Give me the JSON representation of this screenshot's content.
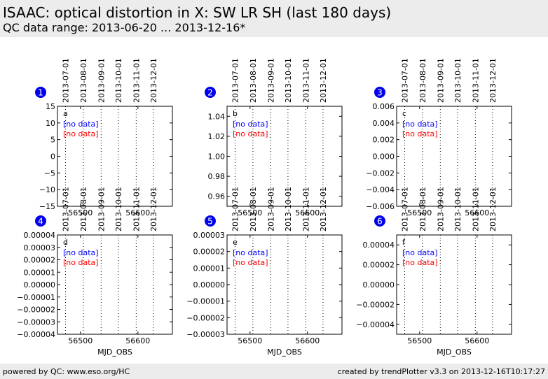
{
  "header": {
    "title": "ISAAC: optical distortion in X: SW LR SH (last 180 days)",
    "subtitle": "QC data range: 2013-06-20 ... 2013-12-16*"
  },
  "footer": {
    "left": "powered by QC: www.eso.org/HC",
    "right": "created by trendPlotter v3.3 on 2013-12-16T10:17:27"
  },
  "colors": {
    "header_bg": "#ececec",
    "badge": "#0000ee",
    "series_blue": "#0000ff",
    "series_red": "#ff0000"
  },
  "chart_data": [
    {
      "type": "scatter",
      "badge": "1",
      "panel_label": "a",
      "xlabel": "",
      "ylabel": "",
      "xlim": [
        56460,
        56660
      ],
      "xticks": [
        56500,
        56600
      ],
      "xtick_labels": [
        "56500",
        "56600"
      ],
      "ylim": [
        -15,
        15
      ],
      "yticks": [
        -15,
        -10,
        -5,
        0,
        5,
        10,
        15
      ],
      "ytick_labels": [
        "−15",
        "−10",
        "−5",
        "0",
        "5",
        "10",
        "15"
      ],
      "date_markers": [
        {
          "mjd": 56474,
          "label": "2013-07-01"
        },
        {
          "mjd": 56505,
          "label": "2013-08-01"
        },
        {
          "mjd": 56536,
          "label": "2013-09-01"
        },
        {
          "mjd": 56566,
          "label": "2013-10-01"
        },
        {
          "mjd": 56597,
          "label": "2013-11-01"
        },
        {
          "mjd": 56627,
          "label": "2013-12-01"
        }
      ],
      "series": [
        {
          "label": "[no data]",
          "color": "#0000ff",
          "points": []
        },
        {
          "label": "[no data]",
          "color": "#ff0000",
          "points": []
        }
      ]
    },
    {
      "type": "scatter",
      "badge": "2",
      "panel_label": "b",
      "xlabel": "",
      "ylabel": "",
      "xlim": [
        56460,
        56660
      ],
      "xticks": [
        56500,
        56600
      ],
      "xtick_labels": [
        "56500",
        "56600"
      ],
      "ylim": [
        0.95,
        1.05
      ],
      "yticks": [
        0.96,
        0.98,
        1.0,
        1.02,
        1.04
      ],
      "ytick_labels": [
        "0.96",
        "0.98",
        "1.00",
        "1.02",
        "1.04"
      ],
      "date_markers": [
        {
          "mjd": 56474,
          "label": "2013-07-01"
        },
        {
          "mjd": 56505,
          "label": "2013-08-01"
        },
        {
          "mjd": 56536,
          "label": "2013-09-01"
        },
        {
          "mjd": 56566,
          "label": "2013-10-01"
        },
        {
          "mjd": 56597,
          "label": "2013-11-01"
        },
        {
          "mjd": 56627,
          "label": "2013-12-01"
        }
      ],
      "series": [
        {
          "label": "[no data]",
          "color": "#0000ff",
          "points": []
        },
        {
          "label": "[no data]",
          "color": "#ff0000",
          "points": []
        }
      ]
    },
    {
      "type": "scatter",
      "badge": "3",
      "panel_label": "c",
      "xlabel": "",
      "ylabel": "",
      "xlim": [
        56460,
        56660
      ],
      "xticks": [
        56500,
        56600
      ],
      "xtick_labels": [
        "56500",
        "56600"
      ],
      "ylim": [
        -0.006,
        0.006
      ],
      "yticks": [
        -0.006,
        -0.004,
        -0.002,
        0,
        0.002,
        0.004,
        0.006
      ],
      "ytick_labels": [
        "−0.006",
        "−0.004",
        "−0.002",
        "0.000",
        "0.002",
        "0.004",
        "0.006"
      ],
      "date_markers": [
        {
          "mjd": 56474,
          "label": "2013-07-01"
        },
        {
          "mjd": 56505,
          "label": "2013-08-01"
        },
        {
          "mjd": 56536,
          "label": "2013-09-01"
        },
        {
          "mjd": 56566,
          "label": "2013-10-01"
        },
        {
          "mjd": 56597,
          "label": "2013-11-01"
        },
        {
          "mjd": 56627,
          "label": "2013-12-01"
        }
      ],
      "series": [
        {
          "label": "[no data]",
          "color": "#0000ff",
          "points": []
        },
        {
          "label": "[no data]",
          "color": "#ff0000",
          "points": []
        }
      ]
    },
    {
      "type": "scatter",
      "badge": "4",
      "panel_label": "d",
      "xlabel": "MJD_OBS",
      "ylabel": "",
      "xlim": [
        56460,
        56660
      ],
      "xticks": [
        56500,
        56600
      ],
      "xtick_labels": [
        "56500",
        "56600"
      ],
      "ylim": [
        -4e-05,
        4e-05
      ],
      "yticks": [
        -4e-05,
        -3e-05,
        -2e-05,
        -1e-05,
        0,
        1e-05,
        2e-05,
        3e-05,
        4e-05
      ],
      "ytick_labels": [
        "−0.00004",
        "−0.00003",
        "−0.00002",
        "−0.00001",
        "0.00000",
        "0.00001",
        "0.00002",
        "0.00003",
        "0.00004"
      ],
      "date_markers": [
        {
          "mjd": 56474,
          "label": "2013-07-01"
        },
        {
          "mjd": 56505,
          "label": "2013-08-01"
        },
        {
          "mjd": 56536,
          "label": "2013-09-01"
        },
        {
          "mjd": 56566,
          "label": "2013-10-01"
        },
        {
          "mjd": 56597,
          "label": "2013-11-01"
        },
        {
          "mjd": 56627,
          "label": "2013-12-01"
        }
      ],
      "series": [
        {
          "label": "[no data]",
          "color": "#0000ff",
          "points": []
        },
        {
          "label": "[no data]",
          "color": "#ff0000",
          "points": []
        }
      ]
    },
    {
      "type": "scatter",
      "badge": "5",
      "panel_label": "e",
      "xlabel": "MJD_OBS",
      "ylabel": "",
      "xlim": [
        56460,
        56660
      ],
      "xticks": [
        56500,
        56600
      ],
      "xtick_labels": [
        "56500",
        "56600"
      ],
      "ylim": [
        -3e-05,
        3e-05
      ],
      "yticks": [
        -3e-05,
        -2e-05,
        -1e-05,
        0,
        1e-05,
        2e-05,
        3e-05
      ],
      "ytick_labels": [
        "−0.00003",
        "−0.00002",
        "−0.00001",
        "0.00000",
        "0.00001",
        "0.00002",
        "0.00003"
      ],
      "date_markers": [
        {
          "mjd": 56474,
          "label": "2013-07-01"
        },
        {
          "mjd": 56505,
          "label": "2013-08-01"
        },
        {
          "mjd": 56536,
          "label": "2013-09-01"
        },
        {
          "mjd": 56566,
          "label": "2013-10-01"
        },
        {
          "mjd": 56597,
          "label": "2013-11-01"
        },
        {
          "mjd": 56627,
          "label": "2013-12-01"
        }
      ],
      "series": [
        {
          "label": "[no data]",
          "color": "#0000ff",
          "points": []
        },
        {
          "label": "[no data]",
          "color": "#ff0000",
          "points": []
        }
      ]
    },
    {
      "type": "scatter",
      "badge": "6",
      "panel_label": "f",
      "xlabel": "MJD_OBS",
      "ylabel": "",
      "xlim": [
        56460,
        56660
      ],
      "xticks": [
        56500,
        56600
      ],
      "xtick_labels": [
        "56500",
        "56600"
      ],
      "ylim": [
        -5e-05,
        5e-05
      ],
      "yticks": [
        -4e-05,
        -2e-05,
        0,
        2e-05,
        4e-05
      ],
      "ytick_labels": [
        "−0.00004",
        "−0.00002",
        "0.00000",
        "0.00002",
        "0.00004"
      ],
      "date_markers": [
        {
          "mjd": 56474,
          "label": "2013-07-01"
        },
        {
          "mjd": 56505,
          "label": "2013-08-01"
        },
        {
          "mjd": 56536,
          "label": "2013-09-01"
        },
        {
          "mjd": 56566,
          "label": "2013-10-01"
        },
        {
          "mjd": 56597,
          "label": "2013-11-01"
        },
        {
          "mjd": 56627,
          "label": "2013-12-01"
        }
      ],
      "series": [
        {
          "label": "[no data]",
          "color": "#0000ff",
          "points": []
        },
        {
          "label": "[no data]",
          "color": "#ff0000",
          "points": []
        }
      ]
    }
  ]
}
